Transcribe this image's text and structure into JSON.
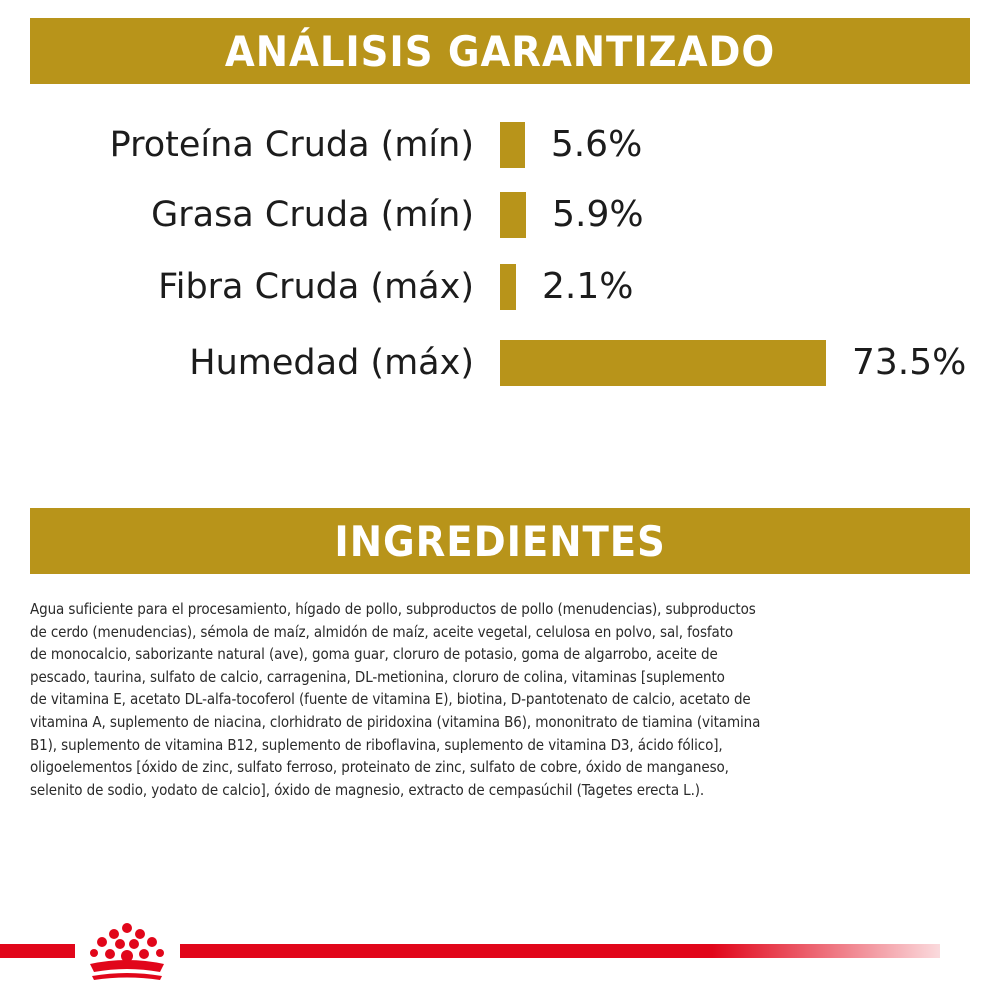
{
  "colors": {
    "gold": "#b8941a",
    "red": "#e1061a",
    "text": "#1c1c1c",
    "background": "#ffffff"
  },
  "header": {
    "title": "ANÁLISIS GARANTIZADO"
  },
  "chart_data": {
    "type": "bar",
    "orientation": "horizontal",
    "categories": [
      "Proteína Cruda (mín)",
      "Grasa Cruda (mín)",
      "Fibra Cruda (máx)",
      "Humedad (máx)"
    ],
    "values": [
      5.6,
      5.9,
      2.1,
      73.5
    ],
    "value_labels": [
      "5.6%",
      "5.9%",
      "2.1%",
      "73.5%"
    ],
    "unit": "%",
    "xlim": [
      0,
      73.5
    ],
    "title": "",
    "xlabel": "",
    "ylabel": ""
  },
  "ingredients": {
    "title": "INGREDIENTES",
    "lines": [
      "Agua suficiente para el procesamiento, hígado de pollo, subproductos de pollo (menudencias), subproductos",
      "de cerdo (menudencias), sémola de maíz, almidón de maíz, aceite vegetal, celulosa en polvo, sal, fosfato",
      "de monocalcio, saborizante natural (ave), goma guar, cloruro de potasio, goma de algarrobo, aceite de",
      "pescado, taurina, sulfato de calcio, carragenina, DL-metionina, cloruro de colina, vitaminas [suplemento",
      "de vitamina E, acetato DL-alfa-tocoferol (fuente de vitamina E), biotina, D-pantotenato de calcio, acetato de",
      "vitamina A, suplemento de niacina, clorhidrato de piridoxina (vitamina B6), mononitrato de tiamina (vitamina",
      "B1), suplemento de vitamina B12, suplemento de riboflavina, suplemento de vitamina D3, ácido fólico],",
      "oligoelementos [óxido de zinc, sulfato ferroso, proteinato de zinc, sulfato de cobre, óxido de manganeso,",
      "selenito de sodio, yodato de calcio], óxido de magnesio, extracto de cempasúchil (Tagetes erecta L.)."
    ]
  },
  "footer": {
    "logo_icon": "crown-icon"
  }
}
